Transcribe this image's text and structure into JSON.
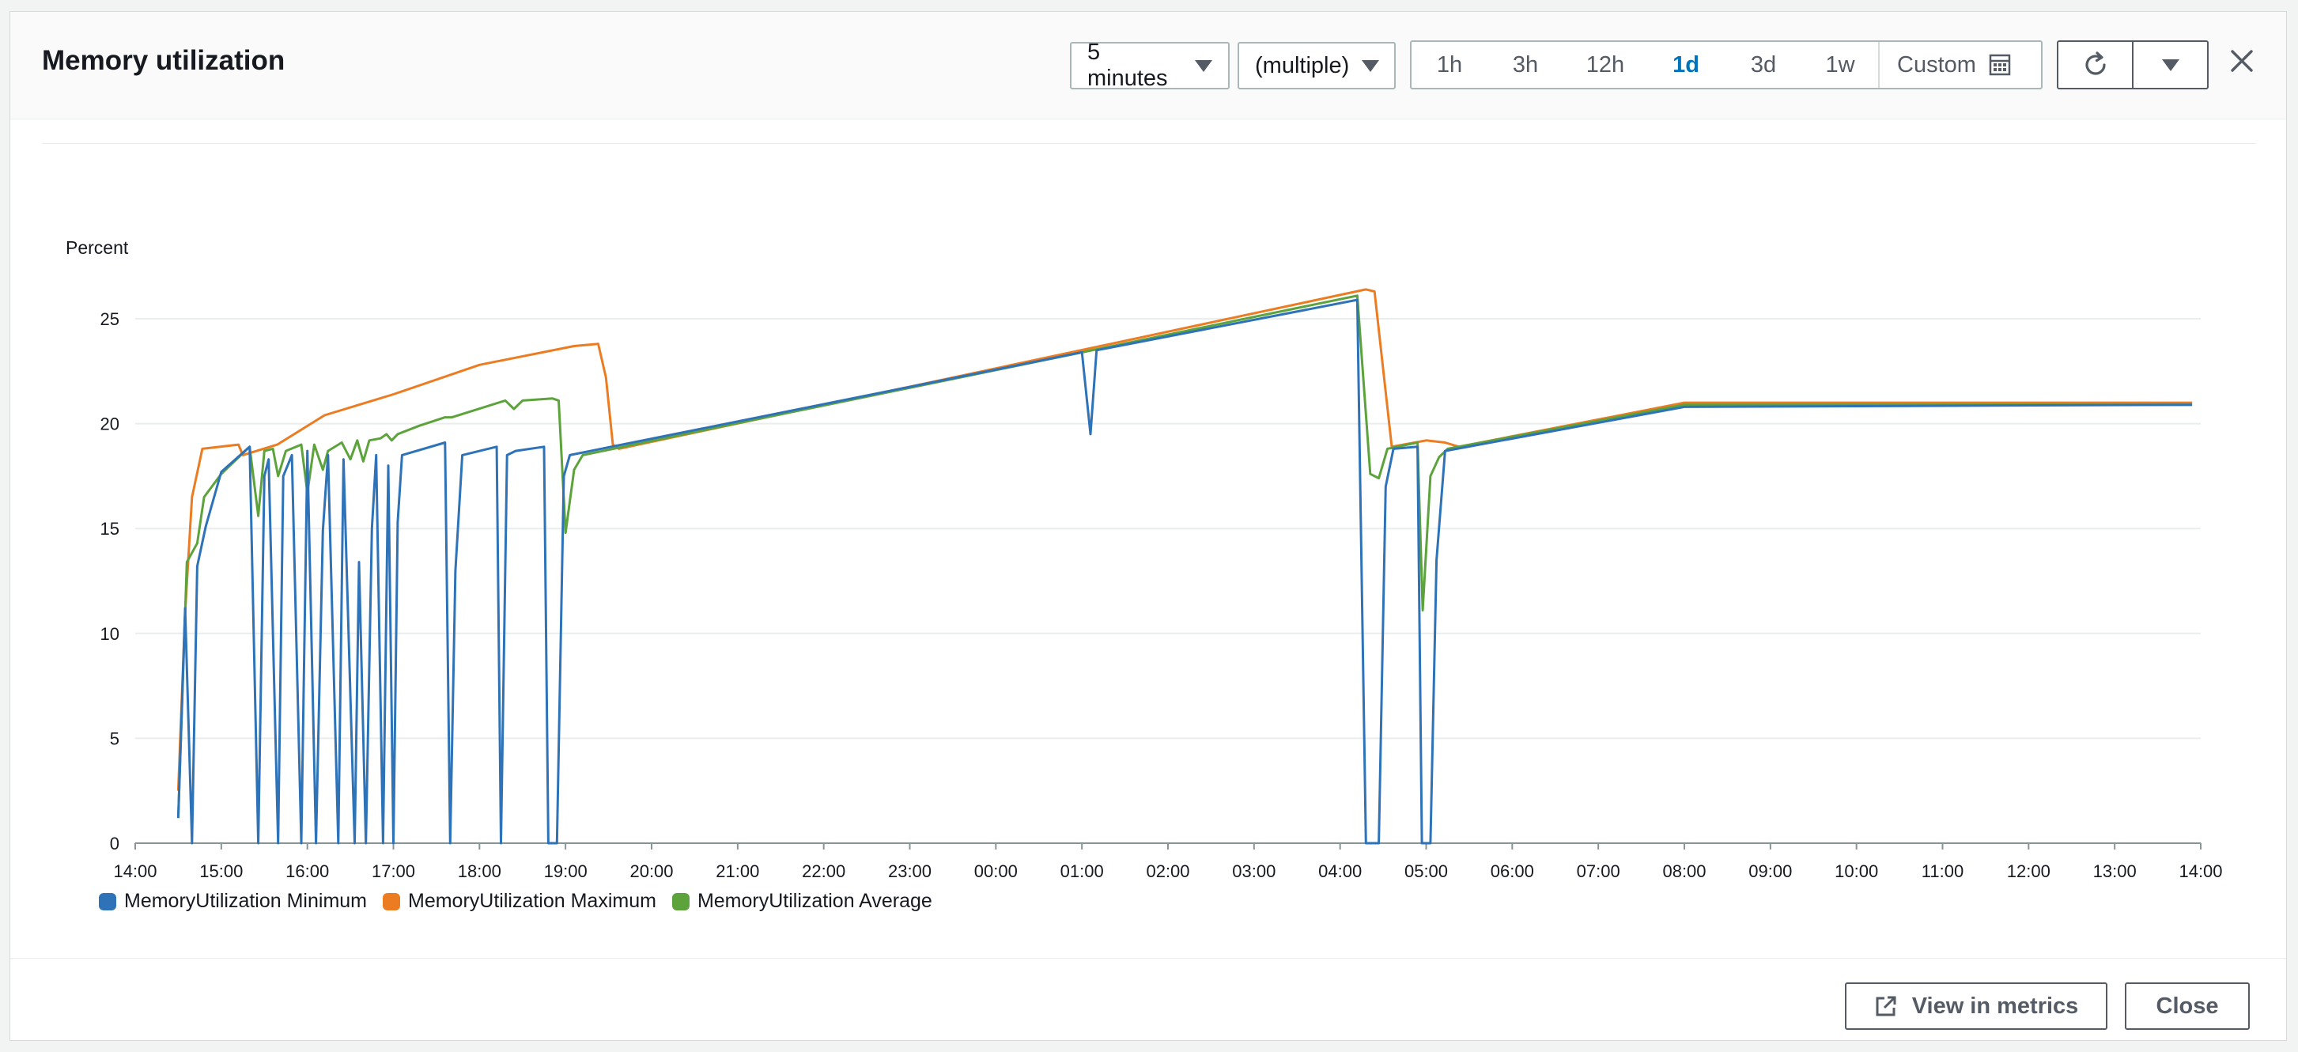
{
  "header": {
    "title": "Memory utilization",
    "period": "5 minutes",
    "statistic": "(multiple)",
    "ranges": [
      "1h",
      "3h",
      "12h",
      "1d",
      "3d",
      "1w"
    ],
    "active_range": "1d",
    "custom_label": "Custom"
  },
  "footer": {
    "view_in_metrics": "View in metrics",
    "close": "Close"
  },
  "chart_data": {
    "type": "line",
    "ylabel": "Percent",
    "ylim": [
      0,
      25
    ],
    "yticks": [
      0,
      5,
      10,
      15,
      20,
      25
    ],
    "xlim": [
      "14:00",
      "14:00+1d"
    ],
    "xticks": [
      "14:00",
      "15:00",
      "16:00",
      "17:00",
      "18:00",
      "19:00",
      "20:00",
      "21:00",
      "22:00",
      "23:00",
      "00:00",
      "01:00",
      "02:00",
      "03:00",
      "04:00",
      "05:00",
      "06:00",
      "07:00",
      "08:00",
      "09:00",
      "10:00",
      "11:00",
      "12:00",
      "13:00",
      "14:00"
    ],
    "grid": true,
    "legend_position": "bottom-left",
    "series": [
      {
        "name": "MemoryUtilization Minimum",
        "color": "#2e73b8",
        "points": [
          [
            0.5,
            1.2
          ],
          [
            0.58,
            11.2
          ],
          [
            0.66,
            0
          ],
          [
            0.72,
            13.2
          ],
          [
            0.82,
            15.1
          ],
          [
            1.0,
            17.7
          ],
          [
            1.33,
            18.9
          ],
          [
            1.43,
            0
          ],
          [
            1.5,
            17.5
          ],
          [
            1.55,
            18.3
          ],
          [
            1.66,
            0
          ],
          [
            1.72,
            17.5
          ],
          [
            1.82,
            18.5
          ],
          [
            1.93,
            0
          ],
          [
            2.0,
            18.7
          ],
          [
            2.1,
            0
          ],
          [
            2.18,
            14.9
          ],
          [
            2.24,
            18.5
          ],
          [
            2.36,
            0
          ],
          [
            2.42,
            18.3
          ],
          [
            2.55,
            0
          ],
          [
            2.6,
            13.4
          ],
          [
            2.68,
            0
          ],
          [
            2.75,
            15
          ],
          [
            2.8,
            18.5
          ],
          [
            2.88,
            0
          ],
          [
            2.94,
            18
          ],
          [
            3.0,
            0
          ],
          [
            3.05,
            15.3
          ],
          [
            3.1,
            18.5
          ],
          [
            3.6,
            19.1
          ],
          [
            3.66,
            0
          ],
          [
            3.72,
            13
          ],
          [
            3.8,
            18.5
          ],
          [
            4.2,
            18.9
          ],
          [
            4.25,
            0
          ],
          [
            4.32,
            18.5
          ],
          [
            4.42,
            18.7
          ],
          [
            4.75,
            18.9
          ],
          [
            4.8,
            0
          ],
          [
            4.9,
            0
          ],
          [
            4.98,
            17.5
          ],
          [
            5.05,
            18.5
          ],
          [
            11.0,
            23.4
          ],
          [
            11.1,
            19.5
          ],
          [
            11.17,
            23.5
          ],
          [
            14.2,
            25.9
          ],
          [
            14.3,
            0
          ],
          [
            14.45,
            0
          ],
          [
            14.53,
            17
          ],
          [
            14.62,
            18.8
          ],
          [
            14.9,
            18.9
          ],
          [
            14.95,
            0
          ],
          [
            15.05,
            0
          ],
          [
            15.12,
            13.5
          ],
          [
            15.22,
            18.7
          ],
          [
            18.0,
            20.8
          ],
          [
            23.9,
            20.9
          ]
        ]
      },
      {
        "name": "MemoryUtilization Maximum",
        "color": "#ec7c22",
        "points": [
          [
            0.5,
            2.5
          ],
          [
            0.58,
            11
          ],
          [
            0.66,
            16.5
          ],
          [
            0.78,
            18.8
          ],
          [
            1.2,
            19
          ],
          [
            1.25,
            18.5
          ],
          [
            1.65,
            19
          ],
          [
            2.2,
            20.4
          ],
          [
            3.0,
            21.4
          ],
          [
            4.0,
            22.8
          ],
          [
            5.1,
            23.7
          ],
          [
            5.38,
            23.8
          ],
          [
            5.47,
            22.2
          ],
          [
            5.55,
            19
          ],
          [
            5.62,
            18.8
          ],
          [
            14.3,
            26.4
          ],
          [
            14.4,
            26.3
          ],
          [
            14.6,
            18.9
          ],
          [
            15.0,
            19.2
          ],
          [
            15.22,
            19.1
          ],
          [
            15.38,
            18.9
          ],
          [
            18.0,
            21
          ],
          [
            23.9,
            21
          ]
        ]
      },
      {
        "name": "MemoryUtilization Average",
        "color": "#5ca33c",
        "points": [
          [
            0.5,
            1.2
          ],
          [
            0.6,
            13.4
          ],
          [
            0.72,
            14.3
          ],
          [
            0.8,
            16.5
          ],
          [
            1.0,
            17.6
          ],
          [
            1.33,
            18.9
          ],
          [
            1.43,
            15.6
          ],
          [
            1.5,
            18.7
          ],
          [
            1.6,
            18.8
          ],
          [
            1.66,
            17.5
          ],
          [
            1.75,
            18.7
          ],
          [
            1.93,
            19
          ],
          [
            2.0,
            16.7
          ],
          [
            2.08,
            19
          ],
          [
            2.18,
            17.8
          ],
          [
            2.24,
            18.7
          ],
          [
            2.4,
            19.1
          ],
          [
            2.5,
            18.3
          ],
          [
            2.58,
            19.2
          ],
          [
            2.65,
            18.2
          ],
          [
            2.72,
            19.2
          ],
          [
            2.85,
            19.3
          ],
          [
            2.92,
            19.5
          ],
          [
            2.98,
            19.2
          ],
          [
            3.05,
            19.5
          ],
          [
            3.3,
            19.9
          ],
          [
            3.6,
            20.3
          ],
          [
            3.68,
            20.3
          ],
          [
            4.3,
            21.1
          ],
          [
            4.4,
            20.7
          ],
          [
            4.5,
            21.1
          ],
          [
            4.85,
            21.2
          ],
          [
            4.92,
            21.1
          ],
          [
            5.0,
            14.8
          ],
          [
            5.1,
            17.8
          ],
          [
            5.2,
            18.5
          ],
          [
            14.2,
            26.1
          ],
          [
            14.35,
            17.6
          ],
          [
            14.45,
            17.4
          ],
          [
            14.55,
            18.8
          ],
          [
            14.9,
            19.1
          ],
          [
            14.96,
            11.1
          ],
          [
            15.05,
            17.5
          ],
          [
            15.15,
            18.4
          ],
          [
            15.25,
            18.8
          ],
          [
            18.0,
            20.9
          ],
          [
            23.9,
            20.9
          ]
        ]
      }
    ]
  }
}
